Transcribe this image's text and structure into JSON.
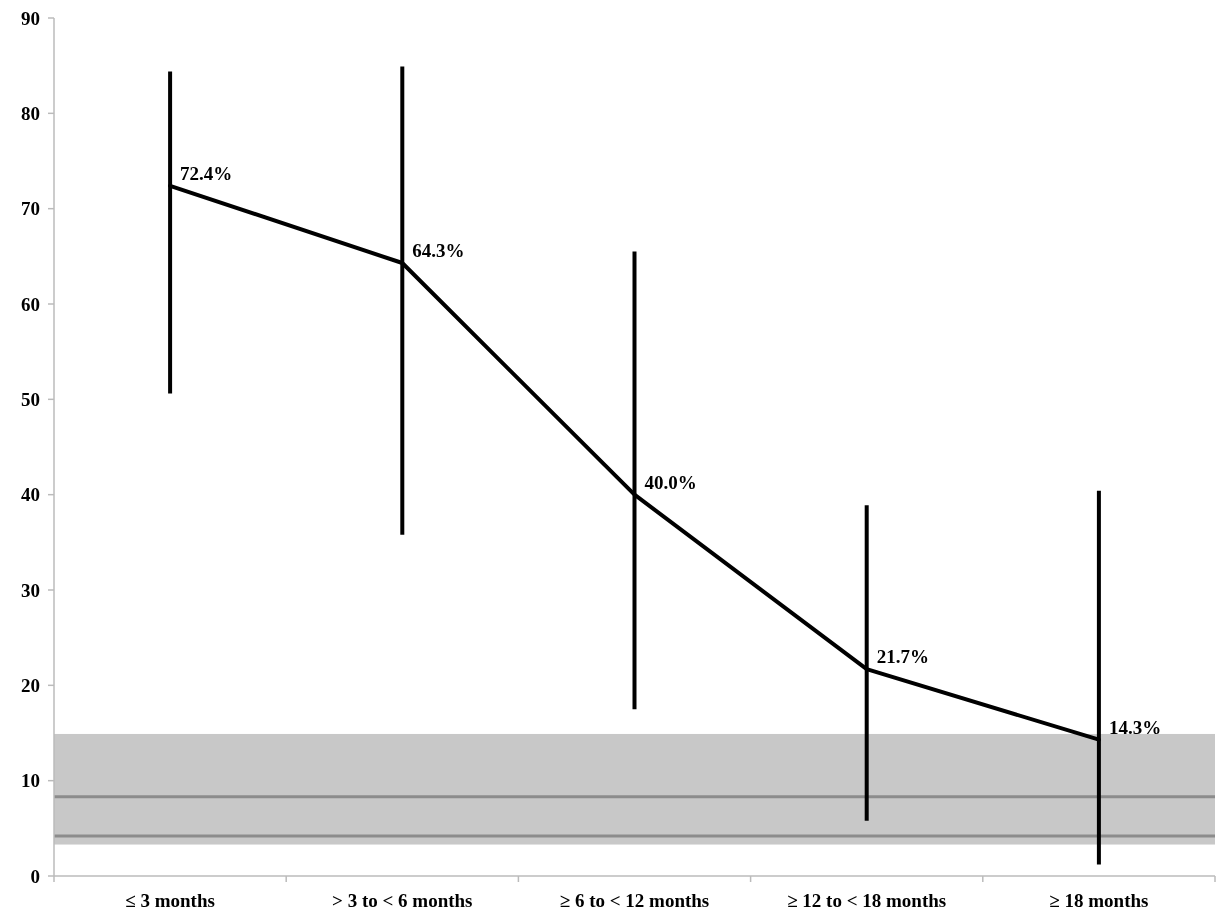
{
  "chart_data": {
    "type": "line",
    "categories": [
      "≤ 3 months",
      "> 3 to < 6 months",
      "≥ 6 to < 12 months",
      "≥ 12 to < 18 months",
      "≥ 18 months"
    ],
    "series": [
      {
        "color": "#000000",
        "values": [
          72.4,
          64.3,
          40.0,
          21.7,
          14.3
        ],
        "errors": [
          [
            50.6,
            84.4
          ],
          [
            35.8,
            84.9
          ],
          [
            17.5,
            65.5
          ],
          [
            5.8,
            38.9
          ],
          [
            1.2,
            40.4
          ]
        ],
        "value_labels": [
          "72.4%",
          "64.3%",
          "40.0%",
          "21.7%",
          "14.3%"
        ]
      }
    ],
    "ylim": [
      0,
      90
    ],
    "yticks": [
      0,
      10,
      20,
      30,
      40,
      50,
      60,
      70,
      80,
      90
    ],
    "bands": [
      {
        "axis": "y",
        "from": 3.3,
        "to": 14.9,
        "color": "#c8c8c8"
      }
    ],
    "ref_lines": [
      {
        "axis": "y",
        "value": 8.3,
        "color": "#8c8c8c"
      },
      {
        "axis": "y",
        "value": 4.2,
        "color": "#8c8c8c"
      }
    ],
    "grid": false,
    "marker": "none",
    "line_style": "solid"
  }
}
